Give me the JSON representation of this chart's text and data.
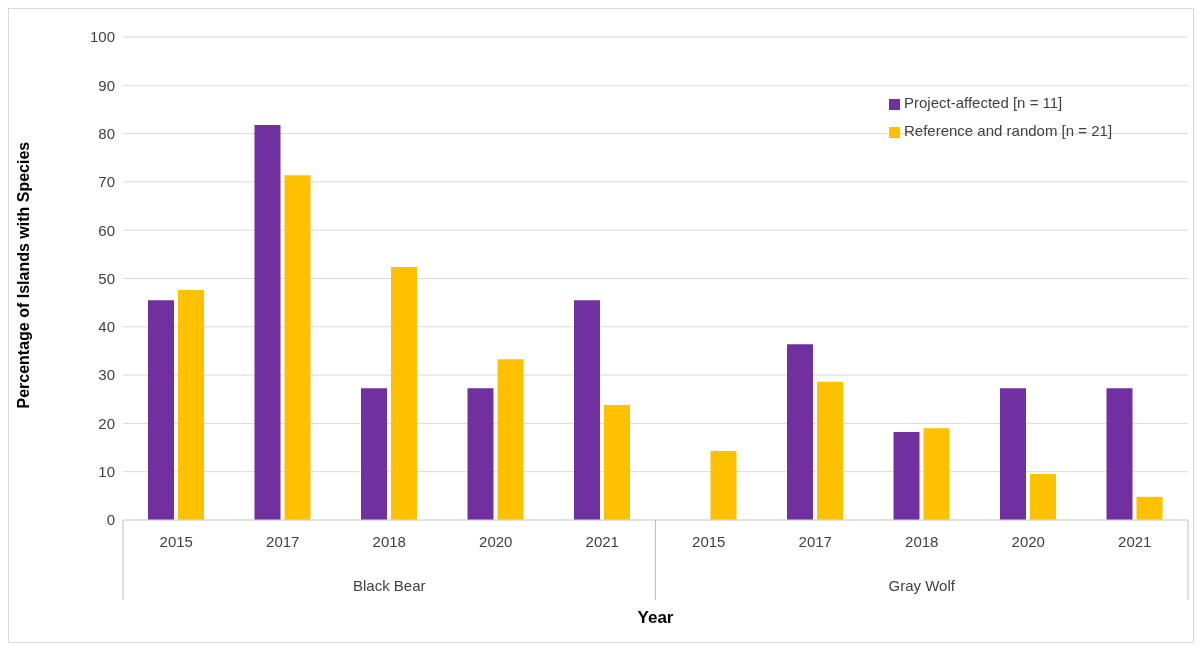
{
  "chart_data": {
    "type": "bar",
    "xlabel": "Year",
    "ylabel": "Percentage of Islands with Species",
    "categories": [
      "2015",
      "2017",
      "2018",
      "2020",
      "2021",
      "2015",
      "2017",
      "2018",
      "2020",
      "2021"
    ],
    "series": [
      {
        "name": "Project-affected [n = 11]",
        "color": "#7030a0",
        "values": [
          45.5,
          81.8,
          27.3,
          27.3,
          45.5,
          0,
          36.4,
          18.2,
          27.3,
          27.3
        ]
      },
      {
        "name": "Reference and random [n = 21]",
        "color": "#ffc000",
        "values": [
          47.6,
          71.4,
          52.4,
          33.3,
          23.8,
          14.3,
          28.6,
          19.0,
          9.5,
          4.8
        ]
      }
    ],
    "annotations": [
      "Black Bear",
      "Gray Wolf"
    ],
    "ylim": [
      0,
      100
    ],
    "yticks": [
      0,
      10,
      20,
      30,
      40,
      50,
      60,
      70,
      80,
      90,
      100
    ],
    "grid": "y",
    "legend": "top right"
  }
}
